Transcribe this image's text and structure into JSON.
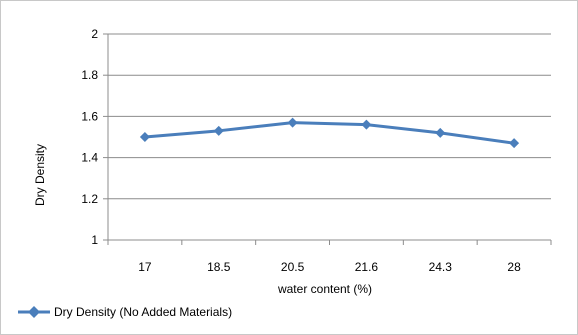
{
  "chart_data": {
    "type": "line",
    "categories": [
      "17",
      "18.5",
      "20.5",
      "21.6",
      "24.3",
      "28"
    ],
    "series": [
      {
        "name": "Dry Density (No Added Materials)",
        "values": [
          1.5,
          1.53,
          1.57,
          1.56,
          1.52,
          1.47
        ],
        "color": "#4a7ebb",
        "marker": "diamond"
      }
    ],
    "xlabel": "water content (%)",
    "ylabel": "Dry Density",
    "ylim": [
      1,
      2
    ],
    "yticks": [
      "1",
      "1.2",
      "1.4",
      "1.6",
      "1.8",
      "2"
    ],
    "grid": "horizontal",
    "legend_position": "bottom-left"
  }
}
